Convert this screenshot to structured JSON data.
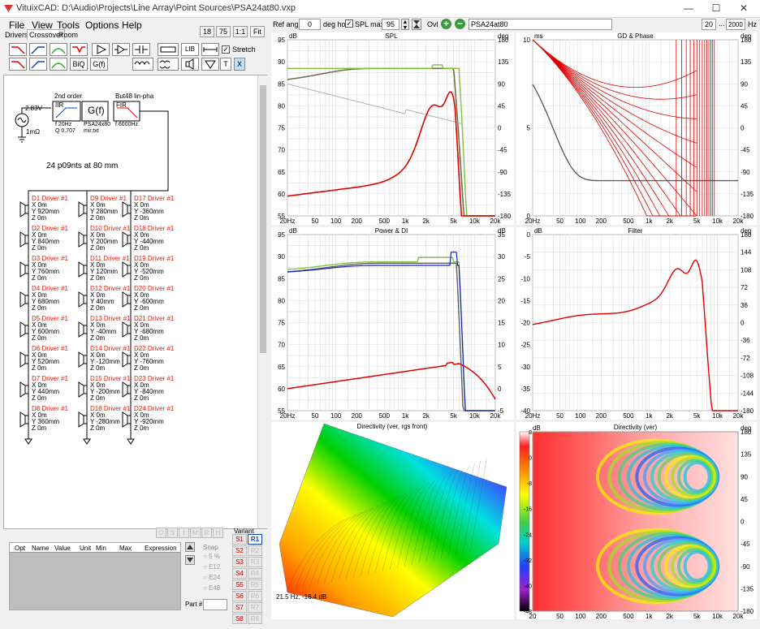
{
  "window": {
    "title": "VituixCAD: D:\\Audio\\Projects\\Line Array\\Point Sources\\PSA24at80.vxp",
    "controls": [
      "—",
      "☐",
      "✕"
    ]
  },
  "menu": [
    "File",
    "View",
    "Tools",
    "Options",
    "Help"
  ],
  "tabs": [
    "Drivers",
    "Crossover",
    "Room"
  ],
  "zoom_buttons": [
    "18",
    "75",
    "1:1",
    "Fit"
  ],
  "toolbar": {
    "biq_label": "BiQ",
    "gf_label": "G(f)",
    "lib_label": "LIB",
    "stretch_label": "Stretch",
    "t_label": "T",
    "x_label": "X"
  },
  "top_controls": {
    "ref_angle_label": "Ref angle",
    "ref_angle_value": "0",
    "deg_hor_label": "deg hor",
    "spl_max_label": "SPL max",
    "spl_max_value": "95",
    "ovl_label": "Ovl",
    "overlay_name": "PSA24at80",
    "freq_min": "20",
    "freq_sep": "...",
    "freq_max": "20000",
    "hz_label": "Hz"
  },
  "schematic": {
    "source_voltage": "2.83V",
    "source_res": "1mΩ",
    "block1_header": "2nd order",
    "block1_name": "IIR",
    "block1_f": "f  20Hz",
    "block1_q": "Q  0.707",
    "block2_name": "G(f)",
    "block2_sub1": "PSA24x80",
    "block2_sub2": "mir.txt",
    "block3_header": "But48 lin-pha",
    "block3_name": "FIR",
    "block3_f": "f   6000Hz",
    "note": "24 p09nts at 80 mm",
    "drivers": [
      {
        "name": "D1 Driver #1",
        "x": "X 0m",
        "y": "Y 920mm",
        "z": "Z 0m"
      },
      {
        "name": "D2 Driver #1",
        "x": "X 0m",
        "y": "Y 840mm",
        "z": "Z 0m"
      },
      {
        "name": "D3 Driver #1",
        "x": "X 0m",
        "y": "Y 760mm",
        "z": "Z 0m"
      },
      {
        "name": "D4 Driver #1",
        "x": "X 0m",
        "y": "Y 680mm",
        "z": "Z 0m"
      },
      {
        "name": "D5 Driver #1",
        "x": "X 0m",
        "y": "Y 600mm",
        "z": "Z 0m"
      },
      {
        "name": "D6 Driver #1",
        "x": "X 0m",
        "y": "Y 520mm",
        "z": "Z 0m"
      },
      {
        "name": "D7 Driver #1",
        "x": "X 0m",
        "y": "Y 440mm",
        "z": "Z 0m"
      },
      {
        "name": "D8 Driver #1",
        "x": "X 0m",
        "y": "Y 360mm",
        "z": "Z 0m"
      },
      {
        "name": "D9 Driver #1",
        "x": "X 0m",
        "y": "Y 280mm",
        "z": "Z 0m"
      },
      {
        "name": "D10 Driver #1",
        "x": "X 0m",
        "y": "Y 200mm",
        "z": "Z 0m"
      },
      {
        "name": "D11 Driver #1",
        "x": "X 0m",
        "y": "Y 120mm",
        "z": "Z 0m"
      },
      {
        "name": "D12 Driver #1",
        "x": "X 0m",
        "y": "Y 40mm",
        "z": "Z 0m"
      },
      {
        "name": "D13 Driver #1",
        "x": "X 0m",
        "y": "Y -40mm",
        "z": "Z 0m"
      },
      {
        "name": "D14 Driver #1",
        "x": "X 0m",
        "y": "Y -120mm",
        "z": "Z 0m"
      },
      {
        "name": "D15 Driver #1",
        "x": "X 0m",
        "y": "Y -200mm",
        "z": "Z 0m"
      },
      {
        "name": "D16 Driver #1",
        "x": "X 0m",
        "y": "Y -280mm",
        "z": "Z 0m"
      },
      {
        "name": "D17 Driver #1",
        "x": "X 0m",
        "y": "Y -360mm",
        "z": "Z 0m"
      },
      {
        "name": "D18 Driver #1",
        "x": "X 0m",
        "y": "Y -440mm",
        "z": "Z 0m"
      },
      {
        "name": "D19 Driver #1",
        "x": "X 0m",
        "y": "Y -520mm",
        "z": "Z 0m"
      },
      {
        "name": "D20 Driver #1",
        "x": "X 0m",
        "y": "Y -600mm",
        "z": "Z 0m"
      },
      {
        "name": "D21 Driver #1",
        "x": "X 0m",
        "y": "Y -680mm",
        "z": "Z 0m"
      },
      {
        "name": "D22 Driver #1",
        "x": "X 0m",
        "y": "Y -760mm",
        "z": "Z 0m"
      },
      {
        "name": "D23 Driver #1",
        "x": "X 0m",
        "y": "Y -840mm",
        "z": "Z 0m"
      },
      {
        "name": "D24 Driver #1",
        "x": "X 0m",
        "y": "Y -920mm",
        "z": "Z 0m"
      }
    ]
  },
  "osmrh": [
    "O",
    "S",
    "I",
    "M",
    "R",
    "H"
  ],
  "param_table": {
    "headers": [
      "Opt",
      "Name",
      "Value",
      "Unit",
      "Min",
      "Max",
      "Expression"
    ]
  },
  "snap": {
    "label": "Snap",
    "options": [
      "5 %",
      "E12",
      "E24",
      "E48"
    ]
  },
  "part_label": "Part #",
  "variant": {
    "label": "Variant",
    "s": [
      "S1",
      "S2",
      "S3",
      "S4",
      "S5",
      "S6",
      "S7",
      "S8"
    ],
    "r": [
      "R1",
      "R2",
      "R3",
      "R4",
      "R5",
      "R6",
      "R7",
      "R8"
    ]
  },
  "colors": {
    "red": "#e00000",
    "green": "#80c040",
    "olive": "#707050",
    "gray": "#606060",
    "lightgray": "#b0b0b0",
    "blue": "#1020c0",
    "accent": "#3c9a3c"
  },
  "charts": {
    "spl": {
      "title": "SPL",
      "left_unit": "dB",
      "right_unit": "deg",
      "left_ticks": [
        "95",
        "90",
        "85",
        "80",
        "75",
        "70",
        "65",
        "60",
        "55"
      ],
      "right_ticks": [
        "180",
        "135",
        "90",
        "45",
        "0",
        "-45",
        "-90",
        "-135",
        "-180"
      ],
      "x_ticks": [
        "20Hz",
        "50",
        "100",
        "200",
        "500",
        "1k",
        "2k",
        "5k",
        "10k",
        "20k"
      ]
    },
    "gd": {
      "title": "GD & Phase",
      "left_unit": "ms",
      "right_unit": "deg",
      "left_ticks": [
        "10",
        "5",
        "0"
      ],
      "right_ticks": [
        "180",
        "135",
        "90",
        "45",
        "0",
        "-45",
        "-90",
        "-135",
        "-180"
      ],
      "x_ticks": [
        "20Hz",
        "50",
        "100",
        "200",
        "500",
        "1k",
        "2k",
        "5k",
        "10k",
        "20k"
      ]
    },
    "power": {
      "title": "Power & DI",
      "left_unit": "dB",
      "right_unit": "dB",
      "left_ticks": [
        "95",
        "90",
        "85",
        "80",
        "75",
        "70",
        "65",
        "60",
        "55"
      ],
      "right_ticks": [
        "35",
        "30",
        "25",
        "20",
        "15",
        "10",
        "5",
        "0",
        "-5"
      ],
      "x_ticks": [
        "20Hz",
        "50",
        "100",
        "200",
        "500",
        "1k",
        "2k",
        "5k",
        "10k",
        "20k"
      ]
    },
    "filter": {
      "title": "Filter",
      "left_unit": "dB",
      "right_unit": "deg",
      "left_ticks": [
        "0",
        "-5",
        "-10",
        "-15",
        "-20",
        "-25",
        "-30",
        "-35",
        "-40"
      ],
      "right_ticks": [
        "180",
        "144",
        "108",
        "72",
        "36",
        "0",
        "-36",
        "-72",
        "-108",
        "-144",
        "-180"
      ],
      "x_ticks": [
        "20Hz",
        "50",
        "100",
        "200",
        "500",
        "1k",
        "2k",
        "5k",
        "10k",
        "20k"
      ]
    },
    "directivity3d": {
      "title": "Directivity (ver, rgs front)",
      "readout": "21.5 Hz, -16.4 dB"
    },
    "directivity": {
      "title": "Directivity (ver)",
      "left_unit": "dB",
      "right_unit": "deg",
      "left_ticks": [
        "8",
        "0",
        "-8",
        "-16",
        "-24",
        "-32",
        "-40",
        "-48"
      ],
      "right_ticks": [
        "180",
        "135",
        "90",
        "45",
        "0",
        "-45",
        "-90",
        "-135",
        "-180"
      ],
      "x_ticks": [
        "20",
        "50",
        "100",
        "200",
        "500",
        "1k",
        "2k",
        "5k",
        "10k",
        "20k"
      ]
    }
  }
}
